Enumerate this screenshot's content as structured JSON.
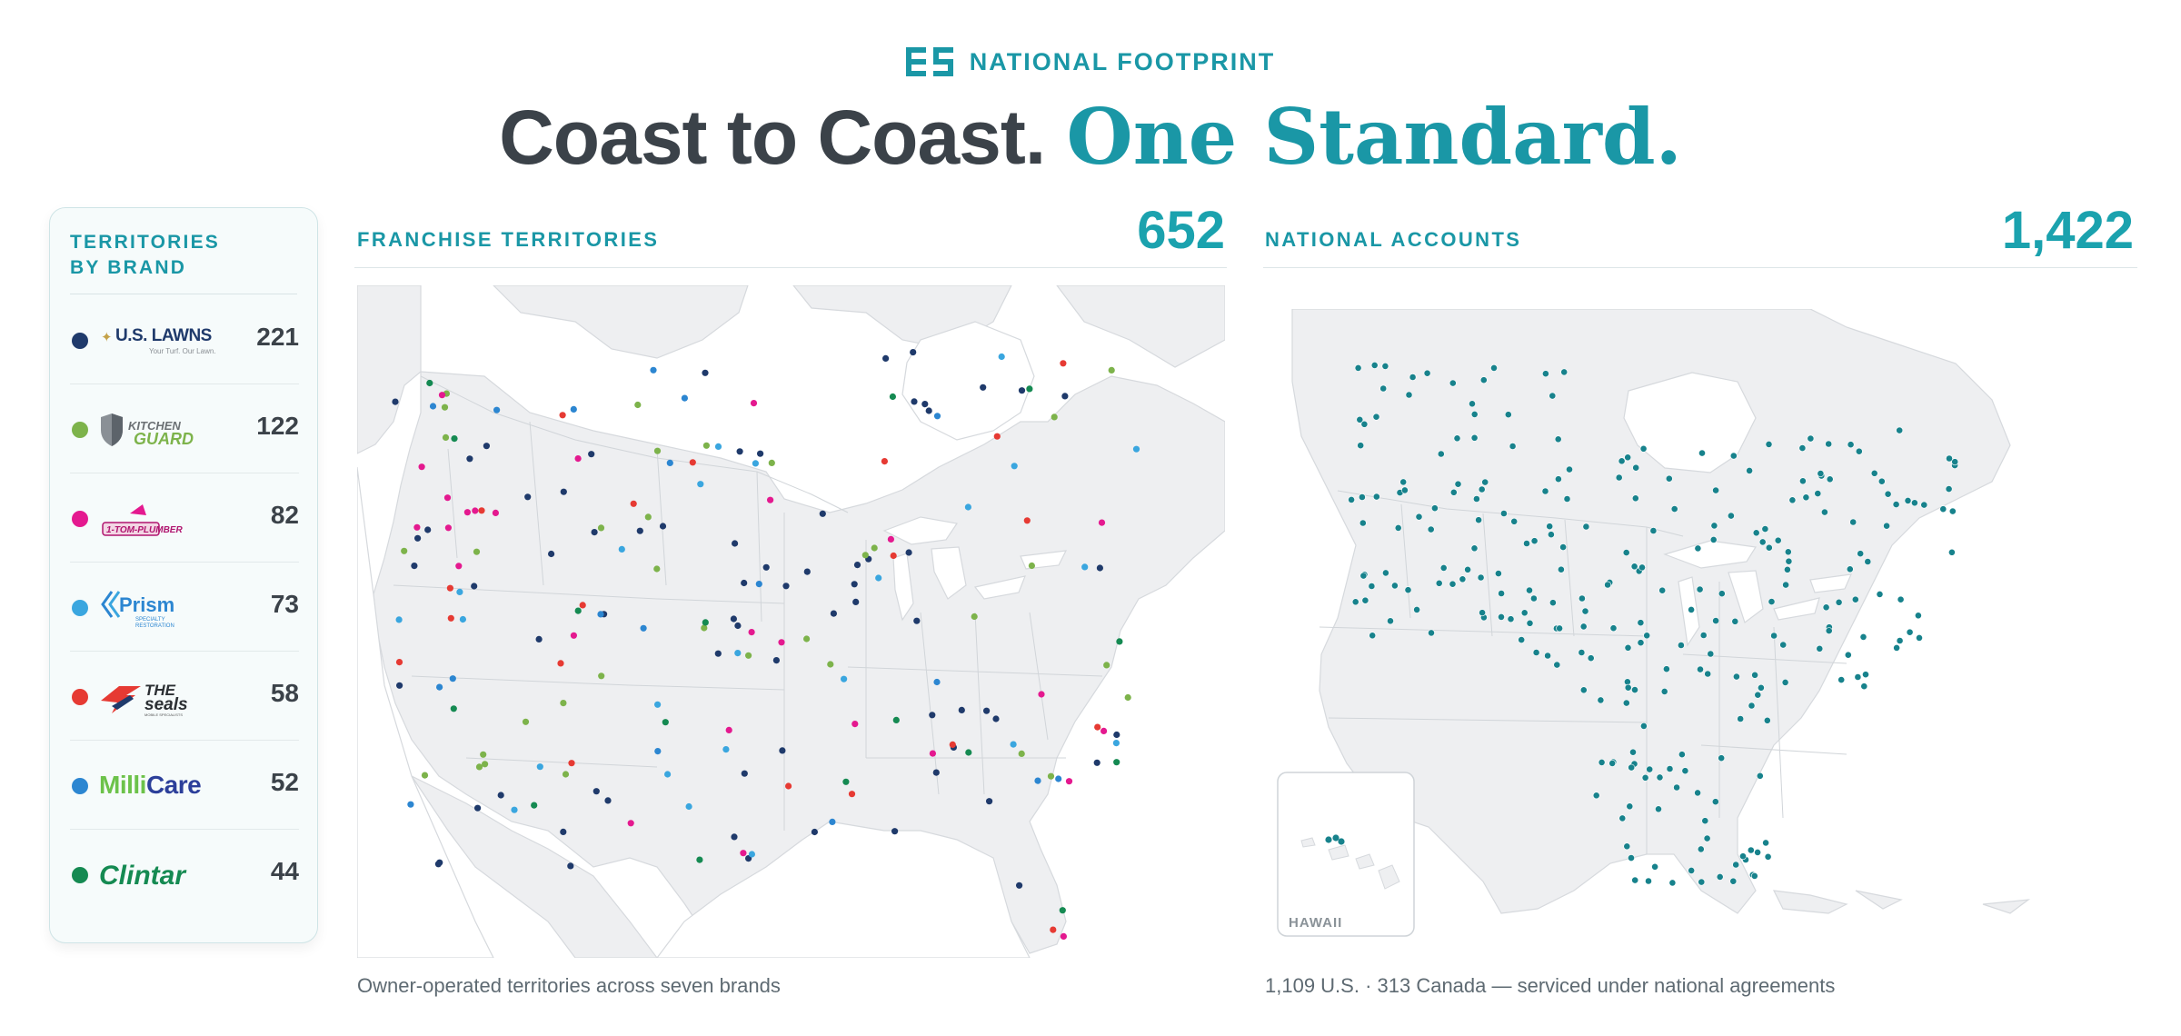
{
  "header": {
    "eyebrow": "NATIONAL FOOTPRINT",
    "headline_a": "Coast to Coast.",
    "headline_b": "One Standard.",
    "logo_icon": "es-monogram-icon"
  },
  "colors": {
    "accent": "#1a97a6",
    "dark": "#3b4249",
    "land": "#eeeff1",
    "accounts_dot": "#17828c"
  },
  "sidebar": {
    "title_line1": "TERRITORIES",
    "title_line2": "BY BRAND",
    "brands": [
      {
        "name": "U.S. LAWNS",
        "tagline": "Your Turf. Our Lawn.",
        "count": "221",
        "color": "#1f3a6b",
        "logo": "us-lawns-logo"
      },
      {
        "name": "KITCHEN GUARD",
        "count": "122",
        "color": "#7db34b",
        "logo": "kitchen-guard-logo"
      },
      {
        "name": "1-TOM-PLUMBER",
        "count": "82",
        "color": "#e4198f",
        "logo": "tom-plumber-logo"
      },
      {
        "name": "Prism",
        "tagline": "SPECIALTY RESTORATION",
        "count": "73",
        "color": "#3aa6df",
        "logo": "prism-logo"
      },
      {
        "name": "THE SEALS",
        "tagline": "MOBILE SPECIALISTS",
        "count": "58",
        "color": "#e63a33",
        "logo": "the-seals-logo"
      },
      {
        "name": "MilliCare",
        "count": "52",
        "color": "#2c86d1",
        "logo": "millicare-logo"
      },
      {
        "name": "Clintar",
        "count": "44",
        "color": "#158a52",
        "logo": "clintar-logo"
      }
    ]
  },
  "franchise": {
    "label": "FRANCHISE TERRITORIES",
    "count": "652",
    "caption": "Owner-operated territories across seven brands"
  },
  "accounts": {
    "label": "NATIONAL ACCOUNTS",
    "count": "1,422",
    "caption": "1,109 U.S. · 313 Canada — serviced under national agreements",
    "inset_label": "HAWAII"
  }
}
